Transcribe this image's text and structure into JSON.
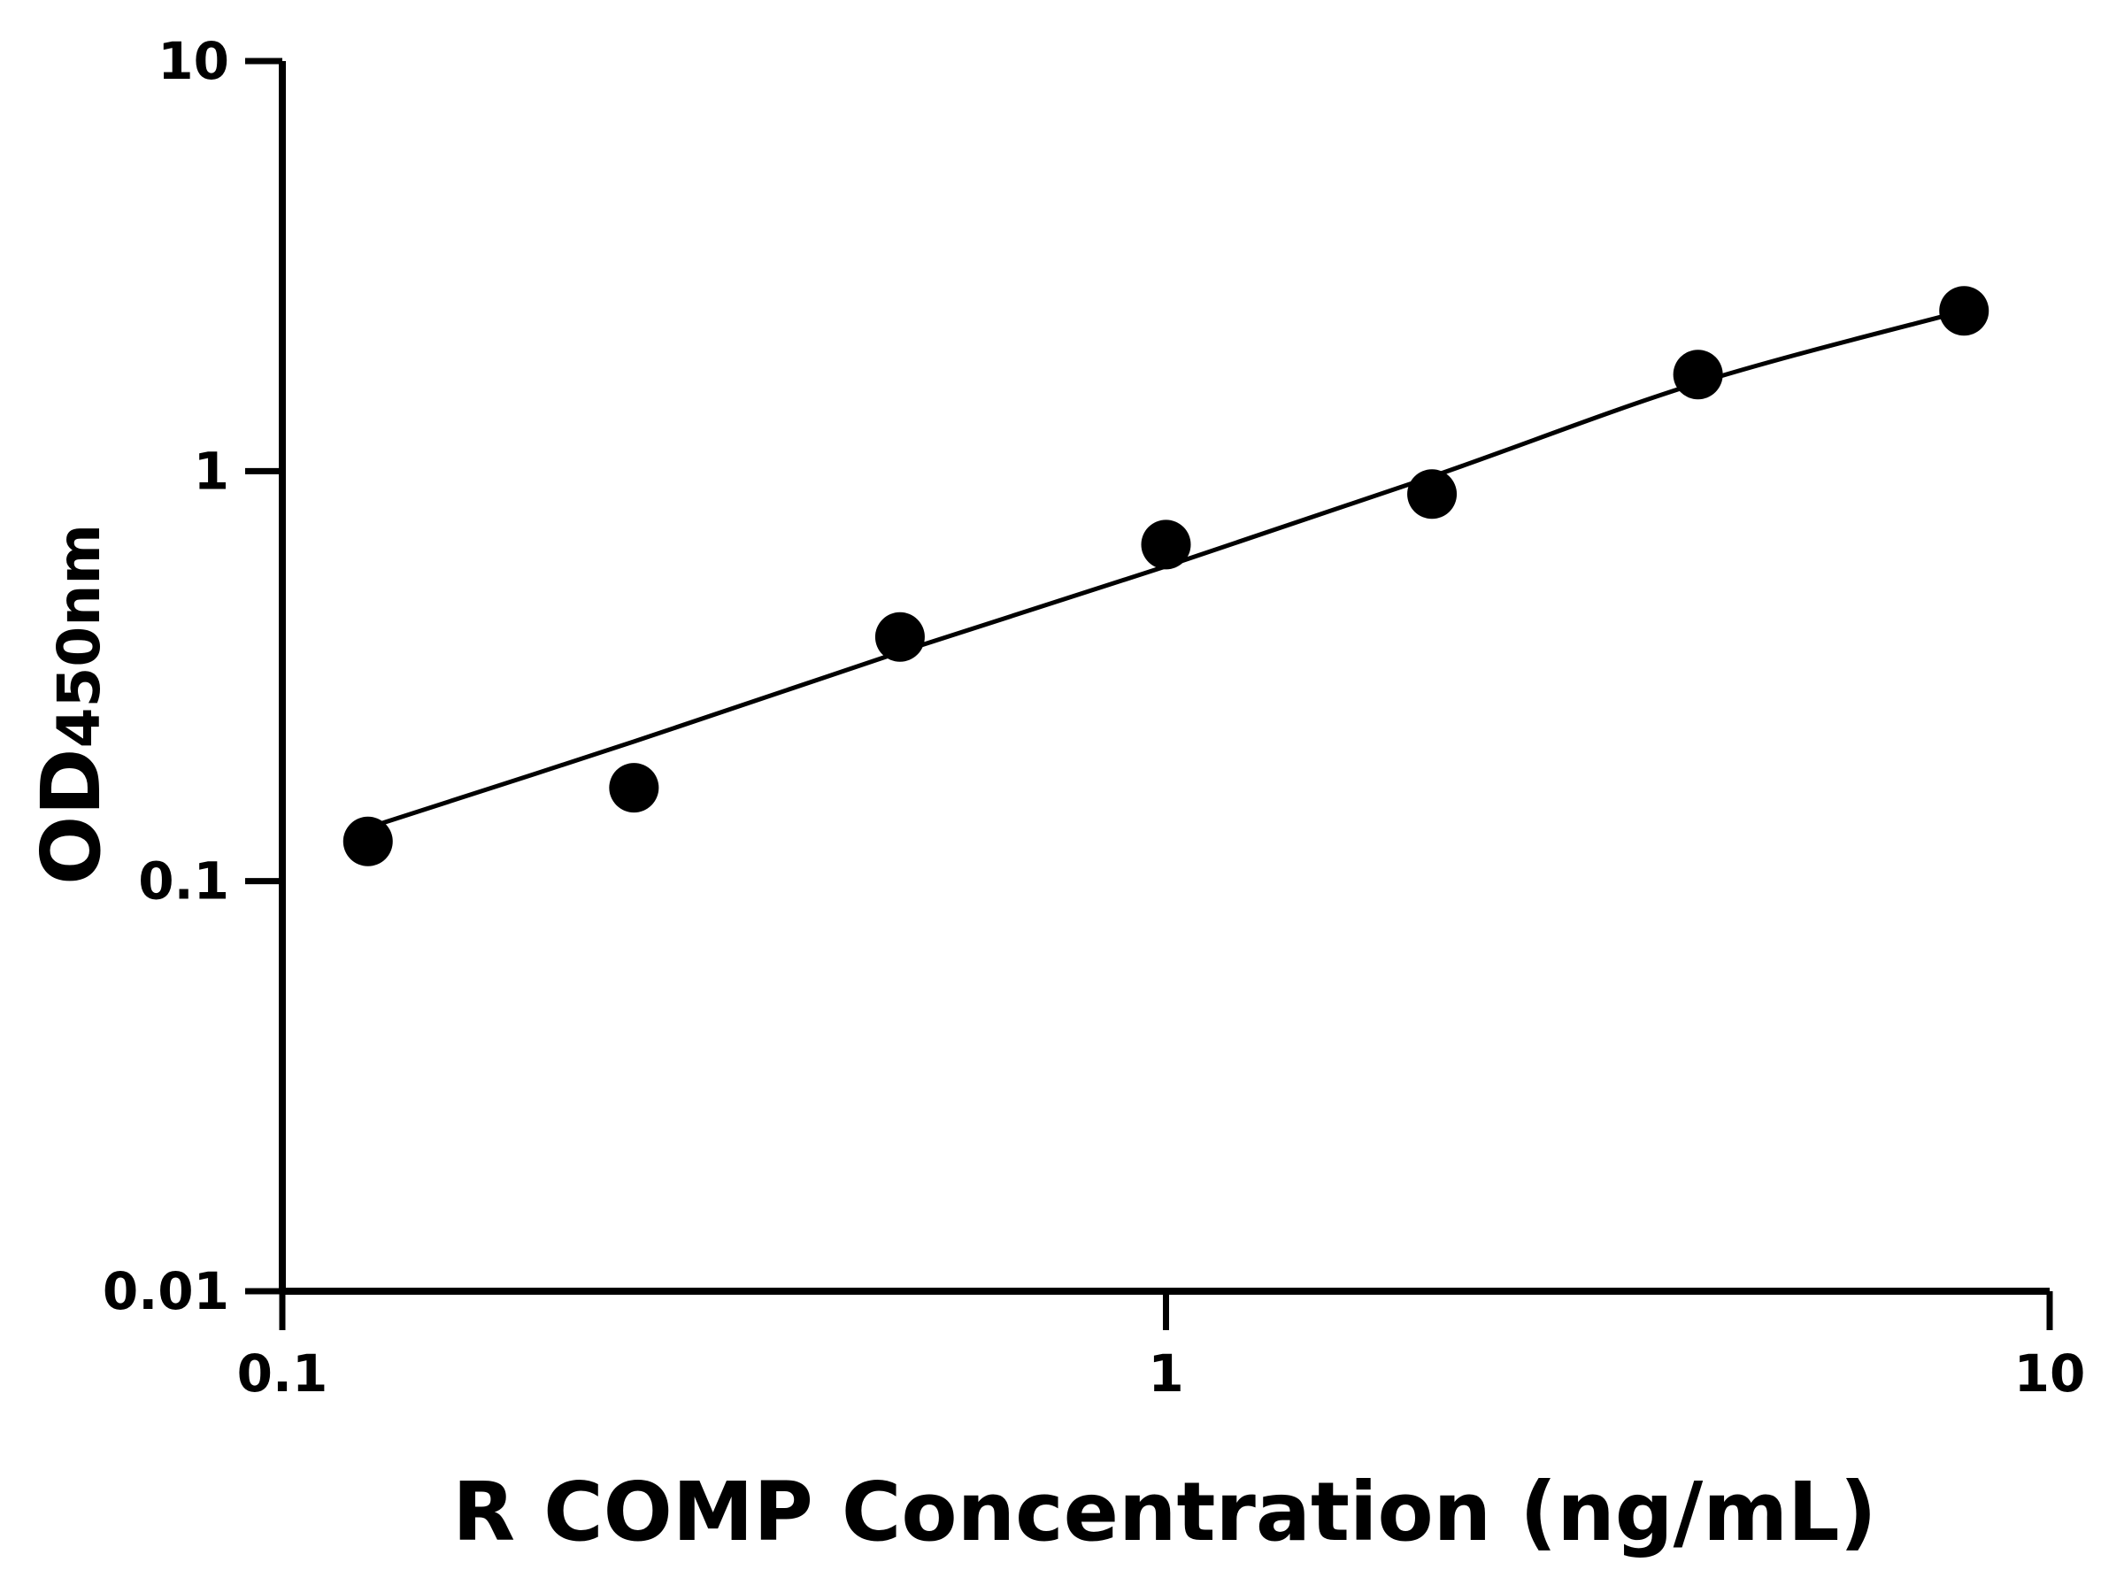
{
  "chart_data": {
    "type": "scatter",
    "x_label": "R COMP Concentration (ng/mL)",
    "y_label": "OD",
    "y_label_sub": "450nm",
    "x": [
      0.125,
      0.25,
      0.5,
      1,
      2,
      4,
      8
    ],
    "values": [
      0.125,
      0.169,
      0.394,
      0.662,
      0.879,
      1.72,
      2.46
    ],
    "color": "#000000",
    "fit": {
      "x": [
        0.125,
        0.25,
        0.5,
        1,
        2,
        4,
        8
      ],
      "values": [
        0.135,
        0.219,
        0.362,
        0.586,
        0.97,
        1.64,
        2.46
      ]
    },
    "x_log": true,
    "y_log": true,
    "xlim": [
      0.1,
      10
    ],
    "ylim": [
      0.01,
      10
    ],
    "xticks": [
      0.1,
      1,
      10
    ],
    "yticks": [
      0.01,
      0.1,
      1,
      10
    ],
    "grid": false
  }
}
